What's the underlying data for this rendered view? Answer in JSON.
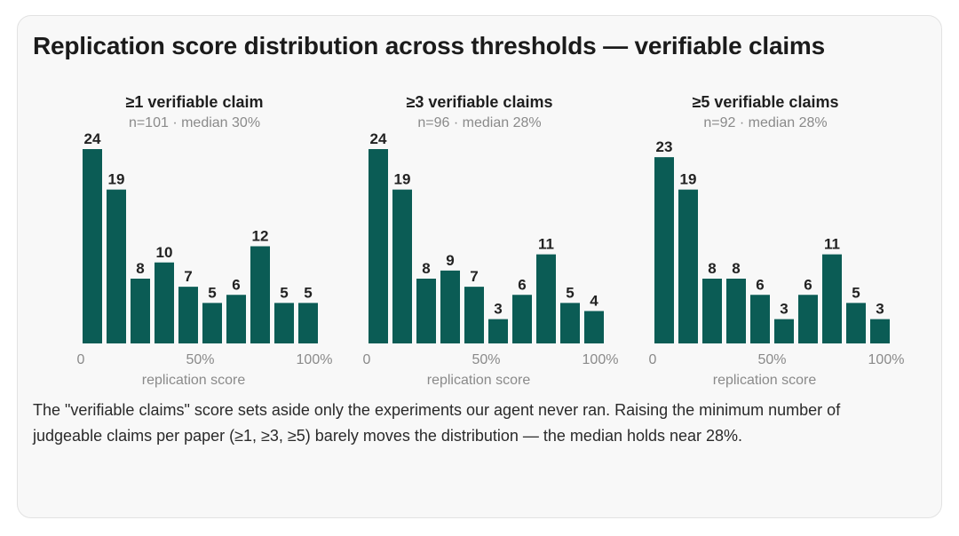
{
  "title": "Replication score distribution across thresholds — verifiable claims",
  "caption": "The \"verifiable claims\" score sets aside only the experiments our agent never ran. Raising the minimum number of judgeable claims per paper (≥1, ≥3, ≥5) barely moves the distribution — the median holds near 28%.",
  "colors": {
    "bar": "#0b5c55",
    "card": "#f8f8f8"
  },
  "chart_data": [
    {
      "type": "bar",
      "title": "≥1 verifiable claim",
      "subtitle": "n=101 · median 30%",
      "xlabel": "replication score",
      "xticks": [
        "0",
        "50%",
        "100%"
      ],
      "bin_count": 10,
      "values": [
        24,
        19,
        8,
        10,
        7,
        5,
        6,
        12,
        5,
        5
      ]
    },
    {
      "type": "bar",
      "title": "≥3 verifiable claims",
      "subtitle": "n=96 · median 28%",
      "xlabel": "replication score",
      "xticks": [
        "0",
        "50%",
        "100%"
      ],
      "bin_count": 10,
      "values": [
        24,
        19,
        8,
        9,
        7,
        3,
        6,
        11,
        5,
        4
      ]
    },
    {
      "type": "bar",
      "title": "≥5 verifiable claims",
      "subtitle": "n=92 · median 28%",
      "xlabel": "replication score",
      "xticks": [
        "0",
        "50%",
        "100%"
      ],
      "bin_count": 10,
      "values": [
        23,
        19,
        8,
        8,
        6,
        3,
        6,
        11,
        5,
        3
      ]
    }
  ]
}
